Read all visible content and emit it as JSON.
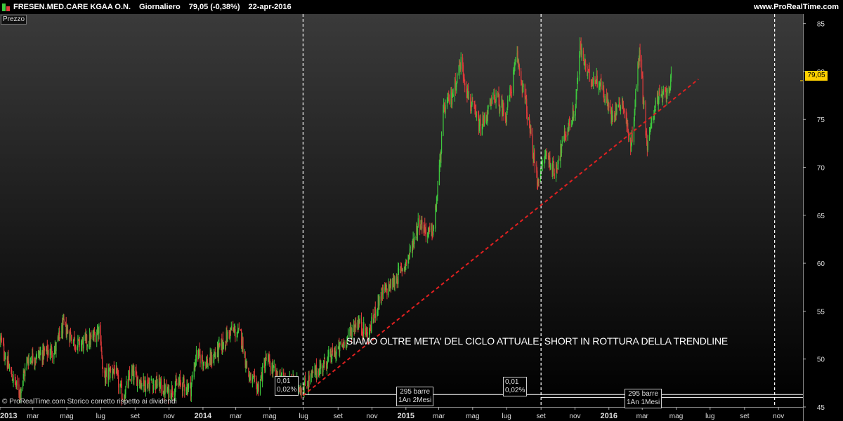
{
  "header": {
    "instrument": "FRESEN.MED.CARE KGAA O.N.",
    "timeframe": "Giornaliero",
    "quote": "79,05 (-0,38%)",
    "date": "22-apr-2016",
    "site": "www.ProRealTime.com"
  },
  "panel_label": "Prezzo",
  "last_price_badge": "79,05",
  "footer_note": "© ProRealTime.com  Storico corretto rispetto ai dividendi",
  "annotation_text": "SIAMO OLTRE META' DEL CICLO ATTUALE, SHORT IN ROTTURA DELLA TRENDLINE",
  "measure_boxes": [
    {
      "line1": "0,01",
      "line2": "0,02%"
    },
    {
      "line1": "295 barre",
      "line2": "1An 2Mesi"
    },
    {
      "line1": "0,01",
      "line2": "0,02%"
    },
    {
      "line1": "295 barre",
      "line2": "1An 1Mesi"
    }
  ],
  "colors": {
    "up": "#3ec83e",
    "down": "#e03b3b",
    "trendline": "#e02020",
    "badge": "#ffd000"
  },
  "chart_data": {
    "type": "candlestick",
    "title": "FRESEN.MED.CARE KGAA O.N.",
    "y_axis": {
      "position": "right",
      "ylim": [
        45,
        86
      ],
      "ticks": [
        45,
        50,
        55,
        60,
        65,
        70,
        75,
        80,
        85
      ]
    },
    "x_axis": {
      "range": [
        "2013-01-01",
        "2016-12-15"
      ],
      "ticks": [
        {
          "date": "2013-01-01",
          "label": "2013"
        },
        {
          "date": "2013-03-01",
          "label": "mar"
        },
        {
          "date": "2013-05-01",
          "label": "mag"
        },
        {
          "date": "2013-07-01",
          "label": "lug"
        },
        {
          "date": "2013-09-01",
          "label": "set"
        },
        {
          "date": "2013-11-01",
          "label": "nov"
        },
        {
          "date": "2014-01-01",
          "label": "2014"
        },
        {
          "date": "2014-03-01",
          "label": "mar"
        },
        {
          "date": "2014-05-01",
          "label": "mag"
        },
        {
          "date": "2014-07-01",
          "label": "lug"
        },
        {
          "date": "2014-09-01",
          "label": "set"
        },
        {
          "date": "2014-11-01",
          "label": "nov"
        },
        {
          "date": "2015-01-01",
          "label": "2015"
        },
        {
          "date": "2015-03-01",
          "label": "mar"
        },
        {
          "date": "2015-05-01",
          "label": "mag"
        },
        {
          "date": "2015-07-01",
          "label": "lug"
        },
        {
          "date": "2015-09-01",
          "label": "set"
        },
        {
          "date": "2015-11-01",
          "label": "nov"
        },
        {
          "date": "2016-01-01",
          "label": "2016"
        },
        {
          "date": "2016-03-01",
          "label": "mar"
        },
        {
          "date": "2016-05-01",
          "label": "mag"
        },
        {
          "date": "2016-07-01",
          "label": "lug"
        },
        {
          "date": "2016-09-01",
          "label": "set"
        },
        {
          "date": "2016-11-01",
          "label": "nov"
        }
      ]
    },
    "grid": false,
    "last_close": 79.05,
    "price_path": [
      [
        "2013-01-02",
        52.0
      ],
      [
        "2013-01-20",
        48.5
      ],
      [
        "2013-02-05",
        46.5
      ],
      [
        "2013-02-20",
        50.0
      ],
      [
        "2013-03-15",
        50.5
      ],
      [
        "2013-04-10",
        51.0
      ],
      [
        "2013-04-25",
        53.5
      ],
      [
        "2013-05-20",
        51.5
      ],
      [
        "2013-06-15",
        52.0
      ],
      [
        "2013-06-30",
        53.5
      ],
      [
        "2013-07-05",
        48.0
      ],
      [
        "2013-07-25",
        49.0
      ],
      [
        "2013-08-10",
        46.0
      ],
      [
        "2013-08-25",
        48.5
      ],
      [
        "2013-09-15",
        47.5
      ],
      [
        "2013-10-10",
        47.5
      ],
      [
        "2013-10-30",
        46.5
      ],
      [
        "2013-11-20",
        47.5
      ],
      [
        "2013-12-10",
        47.0
      ],
      [
        "2013-12-20",
        50.5
      ],
      [
        "2014-01-10",
        49.5
      ],
      [
        "2014-02-05",
        51.5
      ],
      [
        "2014-02-20",
        53.0
      ],
      [
        "2014-03-10",
        52.5
      ],
      [
        "2014-03-25",
        48.0
      ],
      [
        "2014-04-10",
        47.0
      ],
      [
        "2014-04-25",
        50.0
      ],
      [
        "2014-05-15",
        48.0
      ],
      [
        "2014-06-10",
        47.5
      ],
      [
        "2014-06-30",
        47.0
      ],
      [
        "2014-07-20",
        48.5
      ],
      [
        "2014-08-15",
        50.0
      ],
      [
        "2014-09-10",
        51.5
      ],
      [
        "2014-10-05",
        54.0
      ],
      [
        "2014-10-25",
        52.5
      ],
      [
        "2014-11-15",
        56.5
      ],
      [
        "2014-12-10",
        58.0
      ],
      [
        "2015-01-05",
        60.5
      ],
      [
        "2015-01-25",
        64.5
      ],
      [
        "2015-02-10",
        63.0
      ],
      [
        "2015-02-20",
        63.5
      ],
      [
        "2015-03-01",
        69.0
      ],
      [
        "2015-03-10",
        76.0
      ],
      [
        "2015-03-25",
        77.5
      ],
      [
        "2015-04-10",
        81.0
      ],
      [
        "2015-04-25",
        77.0
      ],
      [
        "2015-05-15",
        74.0
      ],
      [
        "2015-06-10",
        77.5
      ],
      [
        "2015-06-30",
        75.5
      ],
      [
        "2015-07-20",
        81.5
      ],
      [
        "2015-08-05",
        76.5
      ],
      [
        "2015-08-25",
        68.5
      ],
      [
        "2015-09-10",
        71.5
      ],
      [
        "2015-09-25",
        69.5
      ],
      [
        "2015-10-15",
        73.5
      ],
      [
        "2015-11-01",
        76.0
      ],
      [
        "2015-11-10",
        82.5
      ],
      [
        "2015-11-25",
        79.5
      ],
      [
        "2015-12-15",
        79.0
      ],
      [
        "2016-01-05",
        75.5
      ],
      [
        "2016-01-25",
        77.0
      ],
      [
        "2016-02-10",
        72.0
      ],
      [
        "2016-02-25",
        82.5
      ],
      [
        "2016-03-10",
        72.0
      ],
      [
        "2016-03-25",
        77.0
      ],
      [
        "2016-04-10",
        77.5
      ],
      [
        "2016-04-22",
        79.05
      ]
    ],
    "trendline": {
      "from": {
        "date": "2014-06-30",
        "y": 46.2
      },
      "to": {
        "date": "2016-06-10",
        "y": 79.2
      },
      "style": "dashed"
    },
    "vertical_markers": [
      "2014-06-30",
      "2015-09-01",
      "2016-10-25"
    ],
    "horizontal_levels": [
      {
        "from": "2014-06-30",
        "to": "2016-12-15",
        "y": 46.3
      },
      {
        "from": "2015-09-01",
        "to": "2016-12-15",
        "y": 46.0
      }
    ]
  }
}
